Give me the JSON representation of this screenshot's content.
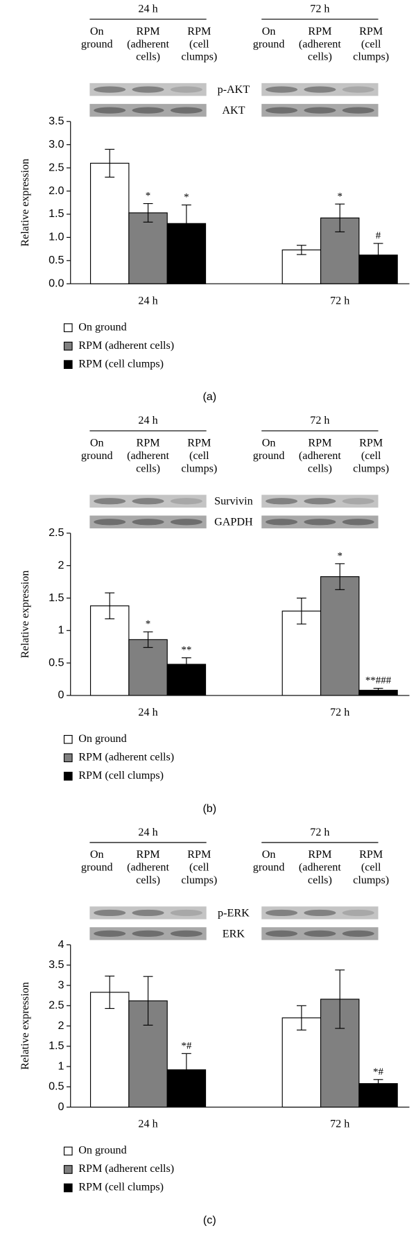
{
  "chart_data": [
    {
      "type": "bar",
      "panel_label": "(a)",
      "ylabel": "Relative expression",
      "blot_groups": [
        "24 h",
        "72 h"
      ],
      "blot_lanes": [
        [
          "On",
          "ground"
        ],
        [
          "RPM",
          "(adherent",
          "cells)"
        ],
        [
          "RPM",
          "(cell",
          "clumps)"
        ]
      ],
      "blot_rows": [
        "p-AKT",
        "AKT"
      ],
      "categories": [
        "24 h",
        "72 h"
      ],
      "ylim": [
        0,
        3.5
      ],
      "yticks": [
        {
          "value": 0,
          "label": "0.0"
        },
        0.5,
        {
          "value": 1,
          "label": "1.0"
        },
        1.5,
        {
          "value": 2,
          "label": "2.0"
        },
        2.5,
        {
          "value": 3,
          "label": "3.0"
        },
        3.5
      ],
      "legend": "bottom-left",
      "series": [
        {
          "name": "On ground",
          "color": "#ffffff",
          "values": [
            2.6,
            0.73
          ],
          "errors": [
            0.3,
            0.1
          ],
          "annotations": [
            null,
            null
          ]
        },
        {
          "name": "RPM (adherent cells)",
          "color": "#808080",
          "values": [
            1.53,
            1.42
          ],
          "errors": [
            0.2,
            0.3
          ],
          "annotations": [
            "*",
            "*"
          ]
        },
        {
          "name": "RPM (cell clumps)",
          "color": "#000000",
          "values": [
            1.3,
            0.62
          ],
          "errors": [
            0.4,
            0.25
          ],
          "annotations": [
            "*",
            "#"
          ]
        }
      ]
    },
    {
      "type": "bar",
      "panel_label": "(b)",
      "ylabel": "Relative expression",
      "blot_groups": [
        "24 h",
        "72 h"
      ],
      "blot_lanes": [
        [
          "On",
          "ground"
        ],
        [
          "RPM",
          "(adherent",
          "cells)"
        ],
        [
          "RPM",
          "(cell",
          "clumps)"
        ]
      ],
      "blot_rows": [
        "Survivin",
        "GAPDH"
      ],
      "categories": [
        "24 h",
        "72 h"
      ],
      "ylim": [
        0,
        2.5
      ],
      "yticks": [
        0,
        0.5,
        1,
        1.5,
        2,
        2.5
      ],
      "legend": "bottom-left",
      "series": [
        {
          "name": "On ground",
          "color": "#ffffff",
          "values": [
            1.38,
            1.3
          ],
          "errors": [
            0.2,
            0.2
          ],
          "annotations": [
            null,
            null
          ]
        },
        {
          "name": "RPM (adherent cells)",
          "color": "#808080",
          "values": [
            0.86,
            1.83
          ],
          "errors": [
            0.12,
            0.2
          ],
          "annotations": [
            "*",
            "*"
          ]
        },
        {
          "name": "RPM (cell clumps)",
          "color": "#000000",
          "values": [
            0.48,
            0.08
          ],
          "errors": [
            0.1,
            0.03
          ],
          "annotations": [
            "**",
            "**###"
          ]
        }
      ]
    },
    {
      "type": "bar",
      "panel_label": "(c)",
      "ylabel": "Relative expression",
      "blot_groups": [
        "24 h",
        "72 h"
      ],
      "blot_lanes": [
        [
          "On",
          "ground"
        ],
        [
          "RPM",
          "(adherent",
          "cells)"
        ],
        [
          "RPM",
          "(cell",
          "clumps)"
        ]
      ],
      "blot_rows": [
        "p-ERK",
        "ERK"
      ],
      "categories": [
        "24 h",
        "72 h"
      ],
      "ylim": [
        0,
        4
      ],
      "yticks": [
        0,
        0.5,
        1,
        1.5,
        2,
        2.5,
        3,
        3.5,
        4
      ],
      "legend": "bottom-left",
      "series": [
        {
          "name": "On ground",
          "color": "#ffffff",
          "values": [
            2.83,
            2.2
          ],
          "errors": [
            0.4,
            0.3
          ],
          "annotations": [
            null,
            null
          ]
        },
        {
          "name": "RPM (adherent cells)",
          "color": "#808080",
          "values": [
            2.62,
            2.66
          ],
          "errors": [
            0.6,
            0.72
          ],
          "annotations": [
            null,
            null
          ]
        },
        {
          "name": "RPM (cell clumps)",
          "color": "#000000",
          "values": [
            0.92,
            0.58
          ],
          "errors": [
            0.4,
            0.1
          ],
          "annotations": [
            "*#",
            "*#"
          ]
        }
      ]
    }
  ]
}
